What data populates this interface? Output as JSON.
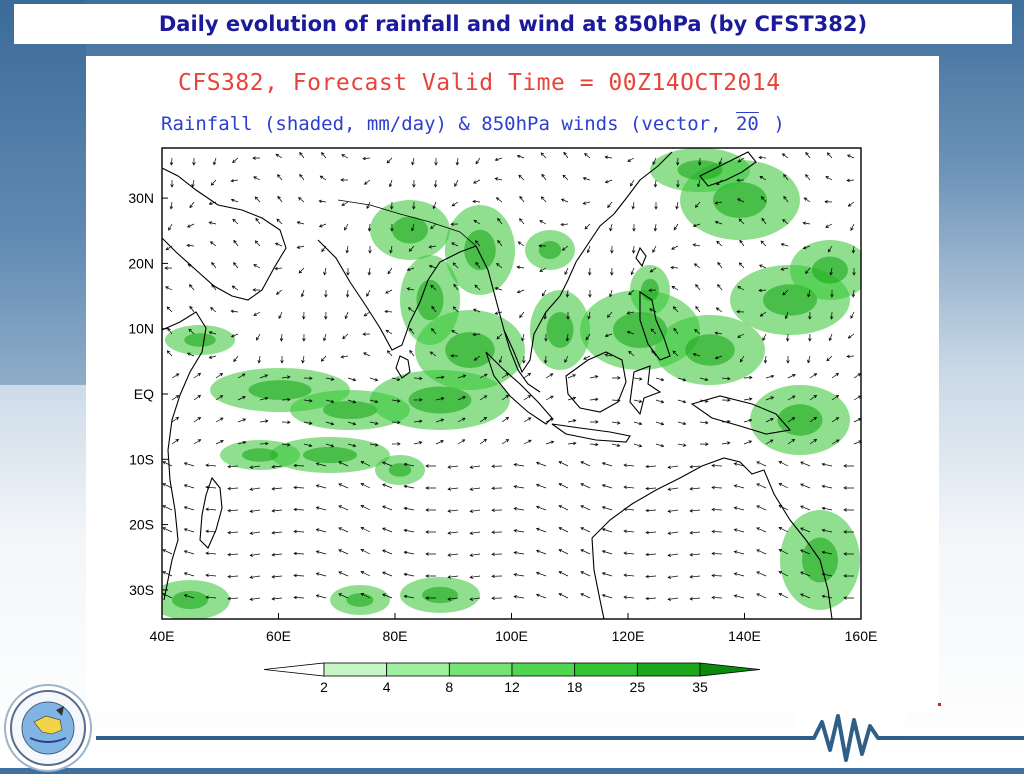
{
  "slide_title": "Daily evolution of rainfall and wind at 850hPa (by CFST382)",
  "map": {
    "title_line1": "CFS382, Forecast Valid Time = 00Z14OCT2014",
    "title_line2": "Rainfall (shaded, mm/day) & 850hPa winds (vector,",
    "ref_vector": "20",
    "title_close": ")",
    "lat_labels": [
      "30N",
      "20N",
      "10N",
      "EQ",
      "10S",
      "20S",
      "30S"
    ],
    "lon_labels": [
      "40E",
      "60E",
      "80E",
      "100E",
      "120E",
      "140E",
      "160E"
    ],
    "colorbar": {
      "levels": [
        "2",
        "4",
        "8",
        "12",
        "18",
        "25",
        "35"
      ],
      "colors": [
        "#c6f5c6",
        "#9ef09e",
        "#74e474",
        "#4fd64f",
        "#33c433",
        "#1aa81a",
        "#0b8a0b"
      ]
    },
    "rain_color": "#33c433",
    "land_outline": "#000000"
  },
  "logo_icon": "institute-seal-icon",
  "footer_icon": "waveform-logo-icon"
}
